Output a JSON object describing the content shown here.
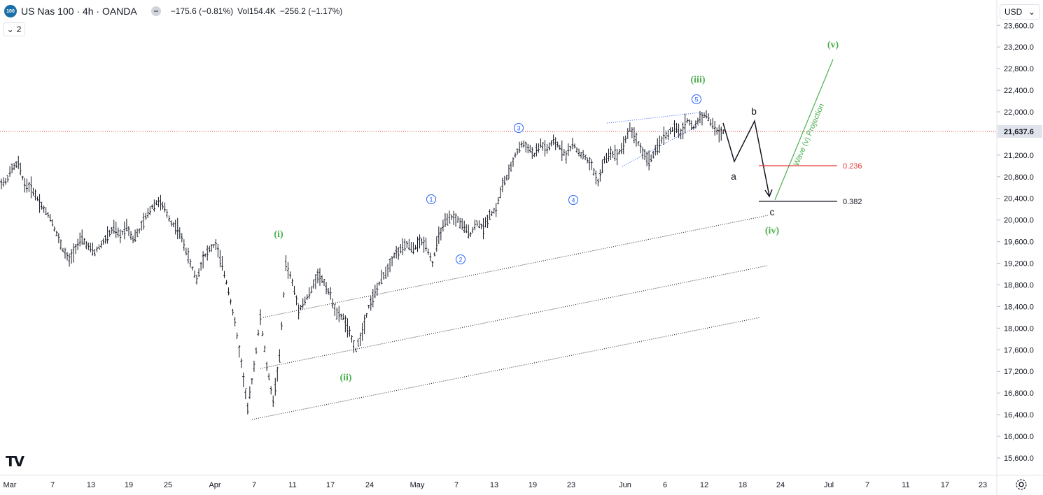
{
  "header": {
    "symbol_badge": "100",
    "title": "US Nas 100 · 4h · OANDA",
    "change": "−175.6 (−0.81%)",
    "volume": "Vol154.4K",
    "vol_change": "−256.2 (−1.17%)",
    "collapse_count": "2"
  },
  "currency": "USD",
  "logo_text": "TV",
  "chart_data": {
    "type": "candlestick",
    "price_axis": {
      "ticks": [
        15600,
        16000,
        16400,
        16800,
        17200,
        17600,
        18000,
        18400,
        18800,
        19200,
        19600,
        20000,
        20400,
        20800,
        21200,
        21600,
        22000,
        22400,
        22800,
        23200,
        23600
      ],
      "tick_labels": [
        "15,600.0",
        "16,000.0",
        "16,400.0",
        "16,800.0",
        "17,200.0",
        "17,600.0",
        "18,000.0",
        "18,400.0",
        "18,800.0",
        "19,200.0",
        "19,600.0",
        "20,000.0",
        "20,400.0",
        "20,800.0",
        "21,200.0",
        "21,600.0",
        "22,000.0",
        "22,400.0",
        "22,800.0",
        "23,200.0",
        "23,600.0"
      ],
      "last_price": 21637.6,
      "last_price_label": "21,637.6",
      "range": [
        15400,
        23800
      ]
    },
    "time_axis": {
      "labels": [
        "Mar",
        "7",
        "13",
        "19",
        "25",
        "Apr",
        "7",
        "11",
        "17",
        "24",
        "May",
        "7",
        "13",
        "19",
        "23",
        "Jun",
        "6",
        "12",
        "18",
        "24",
        "Jul",
        "7",
        "11",
        "17",
        "23"
      ]
    },
    "price_path": [
      [
        0,
        20700
      ],
      [
        1,
        20950
      ],
      [
        2,
        21050
      ],
      [
        3,
        20650
      ],
      [
        4,
        20600
      ],
      [
        5,
        20400
      ],
      [
        6,
        20200
      ],
      [
        7,
        20050
      ],
      [
        8,
        19750
      ],
      [
        9,
        19450
      ],
      [
        10,
        19250
      ],
      [
        11,
        19500
      ],
      [
        12,
        19650
      ],
      [
        13,
        19500
      ],
      [
        14,
        19400
      ],
      [
        15,
        19550
      ],
      [
        16,
        19700
      ],
      [
        17,
        19850
      ],
      [
        18,
        19700
      ],
      [
        19,
        19900
      ],
      [
        20,
        19650
      ],
      [
        21,
        19800
      ],
      [
        22,
        20050
      ],
      [
        23,
        20250
      ],
      [
        24,
        20350
      ],
      [
        25,
        20200
      ],
      [
        26,
        19950
      ],
      [
        27,
        19850
      ],
      [
        28,
        19550
      ],
      [
        29,
        19200
      ],
      [
        30,
        18900
      ],
      [
        31,
        19300
      ],
      [
        32,
        19450
      ],
      [
        33,
        19550
      ],
      [
        34,
        19150
      ],
      [
        35,
        18700
      ],
      [
        36,
        18100
      ],
      [
        37,
        17350
      ],
      [
        38,
        16500
      ],
      [
        39,
        17300
      ],
      [
        40,
        18200
      ],
      [
        41,
        17300
      ],
      [
        42,
        16650
      ],
      [
        43,
        17450
      ],
      [
        44,
        19200
      ],
      [
        45,
        18850
      ],
      [
        46,
        18350
      ],
      [
        47,
        18500
      ],
      [
        48,
        18700
      ],
      [
        49,
        19000
      ],
      [
        50,
        18850
      ],
      [
        51,
        18600
      ],
      [
        52,
        18250
      ],
      [
        53,
        18200
      ],
      [
        54,
        17900
      ],
      [
        55,
        17600
      ],
      [
        56,
        17950
      ],
      [
        57,
        18400
      ],
      [
        58,
        18650
      ],
      [
        59,
        18900
      ],
      [
        60,
        19100
      ],
      [
        61,
        19350
      ],
      [
        62,
        19450
      ],
      [
        63,
        19550
      ],
      [
        64,
        19450
      ],
      [
        65,
        19600
      ],
      [
        66,
        19550
      ],
      [
        67,
        19200
      ],
      [
        68,
        19700
      ],
      [
        69,
        19950
      ],
      [
        70,
        20050
      ],
      [
        71,
        20000
      ],
      [
        72,
        19850
      ],
      [
        73,
        19750
      ],
      [
        74,
        19950
      ],
      [
        75,
        19850
      ],
      [
        76,
        20100
      ],
      [
        77,
        20200
      ],
      [
        78,
        20650
      ],
      [
        79,
        20850
      ],
      [
        80,
        21200
      ],
      [
        81,
        21400
      ],
      [
        82,
        21350
      ],
      [
        83,
        21200
      ],
      [
        84,
        21400
      ],
      [
        85,
        21300
      ],
      [
        86,
        21450
      ],
      [
        87,
        21350
      ],
      [
        88,
        21200
      ],
      [
        89,
        21400
      ],
      [
        90,
        21250
      ],
      [
        91,
        21150
      ],
      [
        92,
        21000
      ],
      [
        93,
        20700
      ],
      [
        94,
        21100
      ],
      [
        95,
        21250
      ],
      [
        96,
        21200
      ],
      [
        97,
        21400
      ],
      [
        98,
        21700
      ],
      [
        99,
        21500
      ],
      [
        100,
        21250
      ],
      [
        101,
        21100
      ],
      [
        102,
        21250
      ],
      [
        103,
        21500
      ],
      [
        104,
        21600
      ],
      [
        105,
        21700
      ],
      [
        106,
        21600
      ],
      [
        107,
        21850
      ],
      [
        108,
        21700
      ],
      [
        109,
        21900
      ],
      [
        110,
        21950
      ],
      [
        111,
        21750
      ],
      [
        112,
        21600
      ],
      [
        113,
        21650
      ]
    ],
    "projection": {
      "path_prices": [
        21800,
        21100,
        21900,
        20450
      ],
      "arrow_to": 20450,
      "line_to_v": 22950
    },
    "fib_levels": [
      {
        "label": "0.236",
        "price": 21000,
        "color": "#e53935"
      },
      {
        "label": "0.382",
        "price": 20350,
        "color": "#131722"
      }
    ],
    "projection_label": "Wave (v) Projection",
    "projection_color": "#4caf50",
    "wave_labels": {
      "green": [
        "(i)",
        "(ii)",
        "(iii)",
        "(iv)",
        "(v)"
      ],
      "blue": [
        "1",
        "2",
        "3",
        "4",
        "5"
      ],
      "black": [
        "a",
        "b",
        "c"
      ]
    },
    "colors": {
      "candle": "#131722",
      "green_label": "#4caf50",
      "blue_label": "#2962ff",
      "last_price_line": "#e53935"
    }
  }
}
